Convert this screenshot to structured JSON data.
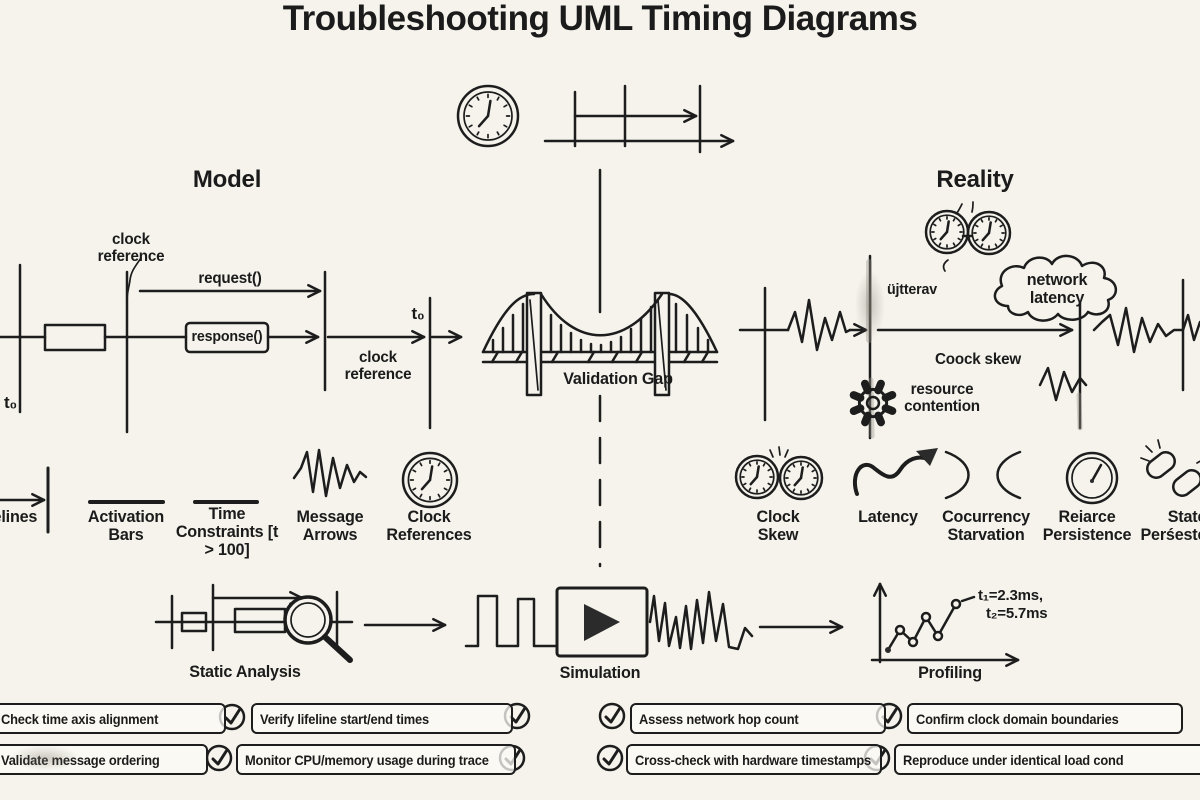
{
  "title": "Troubleshooting UML Timing Diagrams",
  "model": {
    "heading": "Model",
    "clock_reference_top": "clock reference",
    "request_label": "request()",
    "response_label": "response()",
    "t0_start": "t₀",
    "t0_end": "t₀",
    "clock_reference_right": "clock reference"
  },
  "bridge": {
    "label": "Validation Gap"
  },
  "reality": {
    "heading": "Reality",
    "jitter_label": "üjtterav",
    "cloud_label": "network latency",
    "skew_label": "Coock skew",
    "contention_label": "resource contention"
  },
  "legend_model": {
    "items": [
      {
        "name": "lifelines",
        "label": "lifelines"
      },
      {
        "name": "activation-bars",
        "label": "Activation Bars"
      },
      {
        "name": "time-constraints",
        "label": "Time Constraints [t > 100]"
      },
      {
        "name": "message-arrows",
        "label": "Message Arrows"
      },
      {
        "name": "clock-references",
        "label": "Clock References"
      }
    ]
  },
  "legend_reality": {
    "items": [
      {
        "name": "clock-skew",
        "label": "Clock Skew"
      },
      {
        "name": "latency",
        "label": "Latency"
      },
      {
        "name": "concurrency-starvation",
        "label": "Cocurrency Starvation"
      },
      {
        "name": "resource-persistence",
        "label": "Reiarce Persistence"
      },
      {
        "name": "state-persistence",
        "label": "State Perśestence"
      }
    ]
  },
  "process": {
    "steps": [
      {
        "label": "Static Analysis"
      },
      {
        "label": "Simulation"
      },
      {
        "label": "Profiling"
      }
    ],
    "profiling_t1": "t₁=2.3ms,",
    "profiling_t2": "t₂=5.7ms"
  },
  "checklist": {
    "row1": [
      "Check time axis alignment",
      "Verify lifeline start/end times",
      "Assess network hop count",
      "Confirm clock domain boundaries"
    ],
    "row2": [
      "Validate message ordering",
      "Monitor CPU/memory usage during trace",
      "Cross-check with hardware timestamps",
      "Reproduce under identical load cond"
    ]
  },
  "colors": {
    "paper": "#f5f3ec",
    "ink": "#1d1d1d"
  }
}
